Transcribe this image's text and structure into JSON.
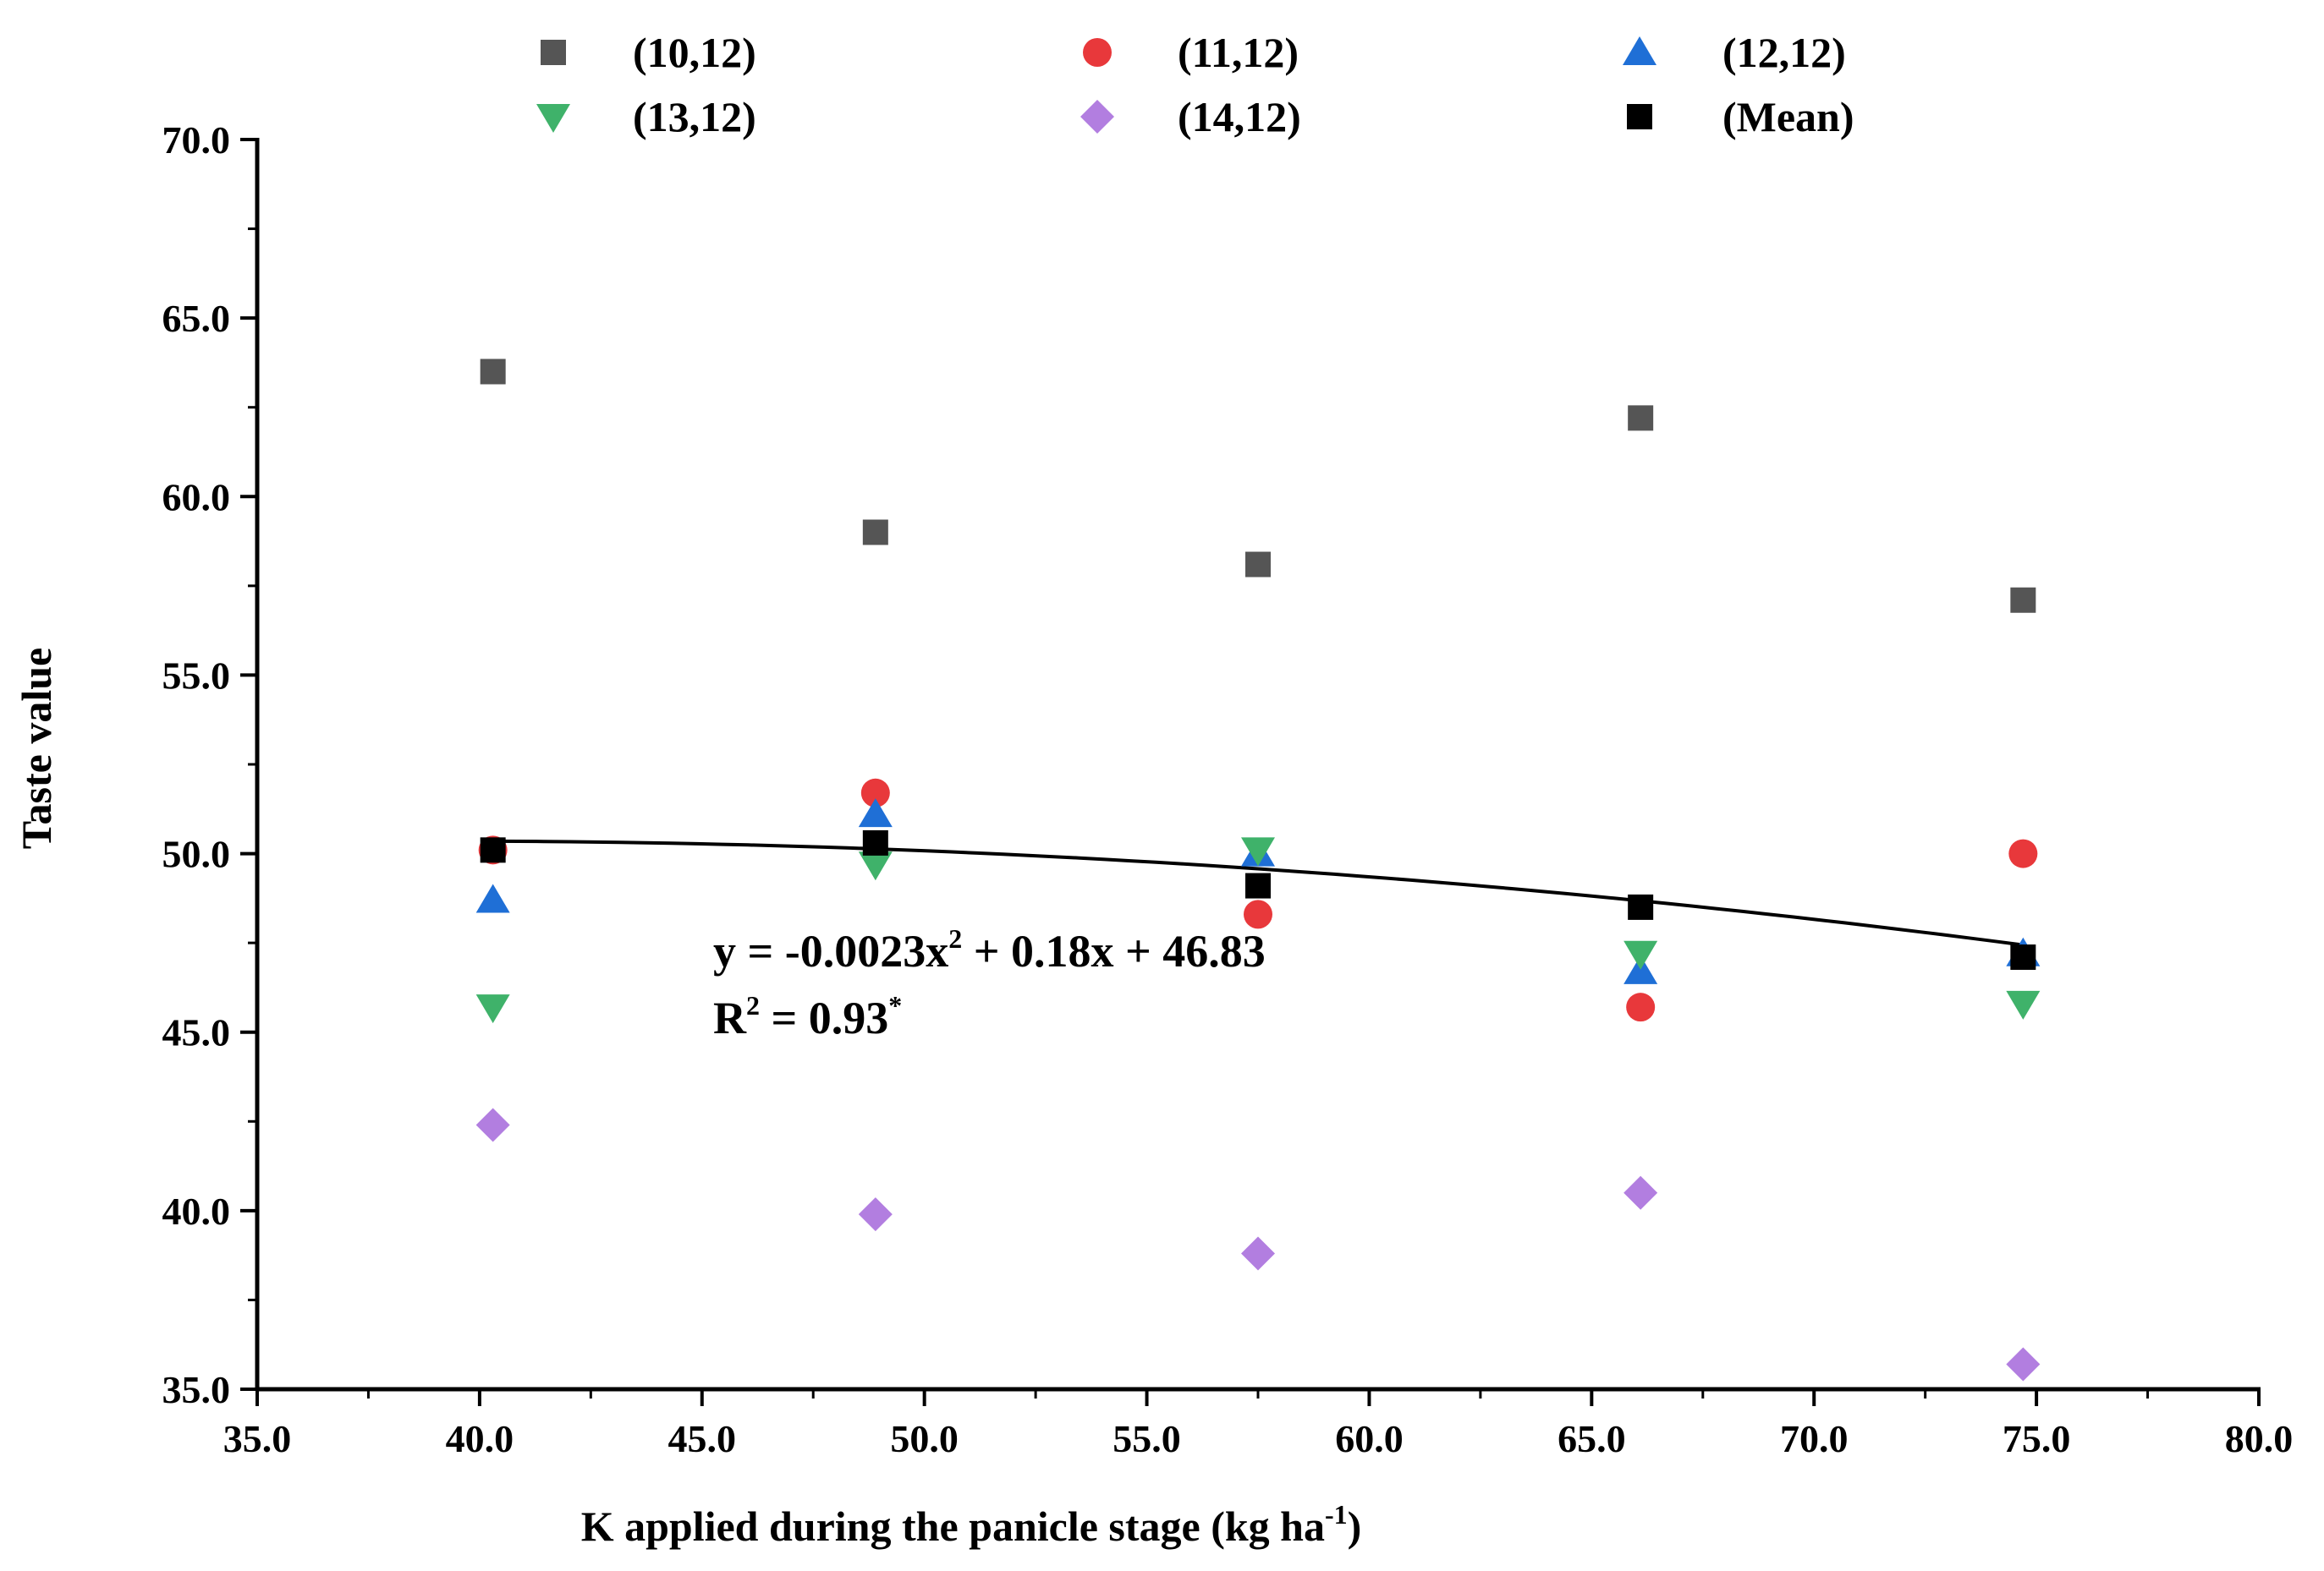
{
  "chart_data": {
    "type": "scatter",
    "title": "",
    "xlabel": {
      "main": "K applied during the panicle stage (kg ha",
      "sup": "-1",
      "end": ")"
    },
    "ylabel": "Taste value",
    "xlim": [
      35.0,
      80.0
    ],
    "ylim": [
      35.0,
      70.0
    ],
    "x_ticks": [
      "35.0",
      "40.0",
      "45.0",
      "50.0",
      "55.0",
      "60.0",
      "65.0",
      "70.0",
      "75.0",
      "80.0"
    ],
    "y_ticks": [
      "35.0",
      "40.0",
      "45.0",
      "50.0",
      "55.0",
      "60.0",
      "65.0",
      "70.0"
    ],
    "x": [
      40.3,
      48.9,
      57.5,
      66.1,
      74.7
    ],
    "legend_position": "top",
    "series": [
      {
        "name": "(10,12)",
        "marker": "square",
        "color": "#555555",
        "values": [
          63.5,
          59.0,
          58.1,
          62.2,
          57.1
        ]
      },
      {
        "name": "(11,12)",
        "marker": "circle",
        "color": "#e8383b",
        "values": [
          50.1,
          51.7,
          48.3,
          45.7,
          50.0
        ]
      },
      {
        "name": "(12,12)",
        "marker": "triangle-up",
        "color": "#1f6fd6",
        "values": [
          48.7,
          51.1,
          50.0,
          46.7,
          47.2
        ]
      },
      {
        "name": "(13,12)",
        "marker": "triangle-down",
        "color": "#3fb26a",
        "values": [
          45.7,
          49.7,
          50.1,
          47.2,
          45.8
        ]
      },
      {
        "name": "(14,12)",
        "marker": "diamond",
        "color": "#b27ee0",
        "values": [
          42.4,
          39.9,
          38.8,
          40.5,
          35.7
        ]
      },
      {
        "name": "(Mean)",
        "marker": "square",
        "color": "#000000",
        "values": [
          50.1,
          50.3,
          49.1,
          48.5,
          47.1
        ]
      }
    ],
    "fit": {
      "series": "(Mean)",
      "a": -0.0023,
      "b": 0.18,
      "c": 46.83,
      "x_range": [
        40.3,
        74.7
      ],
      "equation_text": {
        "p1": "y = -0.0023x",
        "p1_sup": "2",
        "p2": " + 0.18x + 46.83"
      },
      "r2_text": {
        "p1": "R",
        "p1_sup": "2",
        "p2": " = 0.93",
        "p2_sup": "*"
      }
    }
  }
}
